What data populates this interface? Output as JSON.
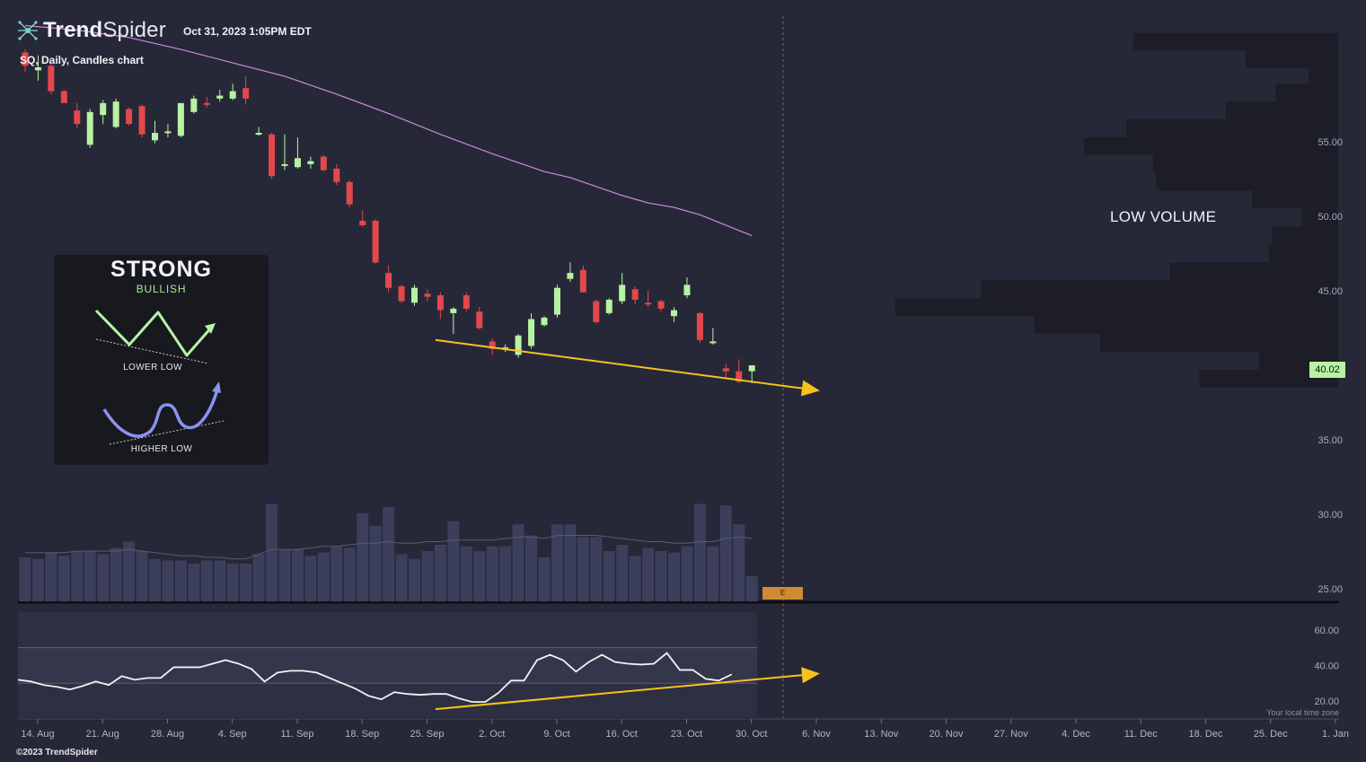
{
  "header": {
    "brand_bold": "Trend",
    "brand_light": "Spider",
    "datetime": "Oct 31, 2023 1:05PM EDT",
    "symbol_line": "SQ, Daily, Candles chart"
  },
  "annotations": {
    "low_volume_label": "LOW VOLUME",
    "last_price_badge": "40.02",
    "earnings_marker": "E"
  },
  "pattern_card": {
    "title": "STRONG",
    "subtitle": "BULLISH",
    "label_top": "LOWER LOW",
    "label_bottom": "HIGHER LOW"
  },
  "footer": {
    "copyright": "©2023 TrendSpider",
    "timezone_note": "Your local time zone"
  },
  "colors": {
    "background": "#262838",
    "bull": "#b7f3a3",
    "bear": "#e3484d",
    "sma": "#c98ed6",
    "volume": "#3c3f5c",
    "profile": "#1c1d26",
    "trendline": "#f7c21b",
    "rsi": "#f2f2f2"
  },
  "chart_data": [
    {
      "type": "candlestick",
      "title": "SQ, Daily, Candles chart",
      "ylim": [
        25,
        62
      ],
      "y_ticks": [
        25,
        30,
        35,
        40,
        45,
        50,
        55
      ],
      "y_tick_labels": [
        "25.00",
        "30.00",
        "35.00",
        "40.00",
        "45.00",
        "50.00",
        "55.00"
      ],
      "x_tick_labels": [
        "14. Aug",
        "21. Aug",
        "28. Aug",
        "4. Sep",
        "11. Sep",
        "18. Sep",
        "25. Sep",
        "2. Oct",
        "9. Oct",
        "16. Oct",
        "23. Oct",
        "30. Oct",
        "6. Nov",
        "13. Nov",
        "20. Nov",
        "27. Nov",
        "4. Dec",
        "11. Dec",
        "18. Dec",
        "25. Dec",
        "1. Jan"
      ],
      "last_price": 40.02,
      "candles": [
        {
          "o": 61.0,
          "h": 61.2,
          "l": 59.7,
          "c": 60.1
        },
        {
          "o": 59.8,
          "h": 60.8,
          "l": 59.1,
          "c": 60.0
        },
        {
          "o": 60.1,
          "h": 60.3,
          "l": 58.2,
          "c": 58.4
        },
        {
          "o": 58.4,
          "h": 58.5,
          "l": 57.6,
          "c": 57.6
        },
        {
          "o": 57.1,
          "h": 57.6,
          "l": 55.9,
          "c": 56.2
        },
        {
          "o": 54.8,
          "h": 57.2,
          "l": 54.6,
          "c": 57.0
        },
        {
          "o": 56.8,
          "h": 57.8,
          "l": 56.2,
          "c": 57.6
        },
        {
          "o": 56.0,
          "h": 57.9,
          "l": 55.9,
          "c": 57.7
        },
        {
          "o": 57.2,
          "h": 57.3,
          "l": 56.1,
          "c": 56.2
        },
        {
          "o": 57.4,
          "h": 57.5,
          "l": 55.3,
          "c": 55.5
        },
        {
          "o": 55.1,
          "h": 56.4,
          "l": 54.9,
          "c": 55.6
        },
        {
          "o": 55.7,
          "h": 56.2,
          "l": 55.3,
          "c": 55.7
        },
        {
          "o": 55.4,
          "h": 57.6,
          "l": 55.3,
          "c": 57.6
        },
        {
          "o": 57.0,
          "h": 58.1,
          "l": 56.9,
          "c": 57.9
        },
        {
          "o": 57.6,
          "h": 58.0,
          "l": 57.3,
          "c": 57.5
        },
        {
          "o": 57.9,
          "h": 58.5,
          "l": 57.7,
          "c": 58.1
        },
        {
          "o": 57.9,
          "h": 58.9,
          "l": 57.8,
          "c": 58.4
        },
        {
          "o": 58.6,
          "h": 59.4,
          "l": 57.5,
          "c": 57.9
        },
        {
          "o": 55.6,
          "h": 56.0,
          "l": 55.4,
          "c": 55.6
        },
        {
          "o": 55.5,
          "h": 55.6,
          "l": 52.5,
          "c": 52.7
        },
        {
          "o": 53.4,
          "h": 55.5,
          "l": 53.1,
          "c": 53.5
        },
        {
          "o": 53.3,
          "h": 55.3,
          "l": 53.2,
          "c": 53.9
        },
        {
          "o": 53.5,
          "h": 54.0,
          "l": 53.2,
          "c": 53.7
        },
        {
          "o": 54.0,
          "h": 54.1,
          "l": 53.0,
          "c": 53.1
        },
        {
          "o": 53.2,
          "h": 53.5,
          "l": 52.1,
          "c": 52.3
        },
        {
          "o": 52.3,
          "h": 52.4,
          "l": 50.6,
          "c": 50.8
        },
        {
          "o": 49.7,
          "h": 50.4,
          "l": 49.3,
          "c": 49.4
        },
        {
          "o": 49.7,
          "h": 49.8,
          "l": 46.8,
          "c": 46.9
        },
        {
          "o": 46.2,
          "h": 46.7,
          "l": 44.9,
          "c": 45.2
        },
        {
          "o": 45.3,
          "h": 45.4,
          "l": 44.2,
          "c": 44.3
        },
        {
          "o": 44.2,
          "h": 45.4,
          "l": 44.0,
          "c": 45.2
        },
        {
          "o": 44.8,
          "h": 45.1,
          "l": 44.3,
          "c": 44.6
        },
        {
          "o": 44.7,
          "h": 44.9,
          "l": 43.1,
          "c": 43.7
        },
        {
          "o": 43.5,
          "h": 43.9,
          "l": 42.1,
          "c": 43.8
        },
        {
          "o": 44.7,
          "h": 44.9,
          "l": 43.6,
          "c": 43.8
        },
        {
          "o": 43.6,
          "h": 43.9,
          "l": 42.4,
          "c": 42.5
        },
        {
          "o": 41.6,
          "h": 41.8,
          "l": 40.7,
          "c": 41.1
        },
        {
          "o": 41.2,
          "h": 41.4,
          "l": 40.9,
          "c": 41.2
        },
        {
          "o": 40.7,
          "h": 42.1,
          "l": 40.5,
          "c": 42.0
        },
        {
          "o": 41.3,
          "h": 43.5,
          "l": 41.1,
          "c": 43.1
        },
        {
          "o": 42.7,
          "h": 43.3,
          "l": 42.6,
          "c": 43.2
        },
        {
          "o": 43.4,
          "h": 45.4,
          "l": 43.2,
          "c": 45.2
        },
        {
          "o": 45.8,
          "h": 46.9,
          "l": 45.6,
          "c": 46.2
        },
        {
          "o": 46.4,
          "h": 46.7,
          "l": 44.9,
          "c": 44.9
        },
        {
          "o": 44.3,
          "h": 44.4,
          "l": 42.8,
          "c": 42.9
        },
        {
          "o": 43.5,
          "h": 44.5,
          "l": 43.4,
          "c": 44.4
        },
        {
          "o": 44.3,
          "h": 46.2,
          "l": 44.1,
          "c": 45.4
        },
        {
          "o": 45.1,
          "h": 45.3,
          "l": 44.1,
          "c": 44.4
        },
        {
          "o": 44.2,
          "h": 45.0,
          "l": 43.9,
          "c": 44.1
        },
        {
          "o": 44.3,
          "h": 44.4,
          "l": 43.6,
          "c": 43.8
        },
        {
          "o": 43.3,
          "h": 43.9,
          "l": 42.9,
          "c": 43.7
        },
        {
          "o": 44.7,
          "h": 45.9,
          "l": 44.5,
          "c": 45.4
        },
        {
          "o": 43.5,
          "h": 43.6,
          "l": 41.5,
          "c": 41.7
        },
        {
          "o": 41.6,
          "h": 42.5,
          "l": 41.4,
          "c": 41.6
        },
        {
          "o": 39.8,
          "h": 40.1,
          "l": 39.2,
          "c": 39.6
        },
        {
          "o": 39.6,
          "h": 40.4,
          "l": 38.8,
          "c": 38.9
        },
        {
          "o": 39.6,
          "h": 40.0,
          "l": 38.8,
          "c": 40.0
        }
      ],
      "sma": {
        "name": "SMA",
        "values": [
          [
            0,
            62.8
          ],
          [
            4,
            62.5
          ],
          [
            8,
            62.0
          ],
          [
            12,
            61.2
          ],
          [
            16,
            60.3
          ],
          [
            20,
            59.4
          ],
          [
            24,
            58.2
          ],
          [
            28,
            56.9
          ],
          [
            32,
            55.5
          ],
          [
            36,
            54.2
          ],
          [
            38,
            53.6
          ],
          [
            40,
            53.0
          ],
          [
            42,
            52.6
          ],
          [
            44,
            52.0
          ],
          [
            46,
            51.4
          ],
          [
            48,
            50.9
          ],
          [
            50,
            50.6
          ],
          [
            52,
            50.1
          ],
          [
            54,
            49.4
          ],
          [
            56,
            48.7
          ]
        ]
      },
      "volume": {
        "values": [
          2.8,
          2.7,
          3.1,
          2.9,
          3.2,
          3.2,
          3.0,
          3.4,
          3.8,
          3.2,
          2.7,
          2.6,
          2.6,
          2.4,
          2.6,
          2.6,
          2.4,
          2.4,
          3.0,
          6.2,
          3.3,
          3.3,
          2.9,
          3.1,
          3.5,
          3.4,
          5.6,
          4.8,
          6.0,
          3.0,
          2.7,
          3.2,
          3.6,
          5.1,
          3.5,
          3.2,
          3.5,
          3.5,
          4.9,
          4.2,
          2.8,
          4.9,
          4.9,
          4.1,
          4.1,
          3.2,
          3.6,
          2.9,
          3.4,
          3.2,
          3.1,
          3.5,
          6.2,
          3.5,
          6.1,
          4.9,
          1.6
        ],
        "avg": [
          3.1,
          3.1,
          3.1,
          3.1,
          3.2,
          3.2,
          3.2,
          3.2,
          3.3,
          3.2,
          3.1,
          3.0,
          2.9,
          2.9,
          2.8,
          2.8,
          2.7,
          2.7,
          3.0,
          3.3,
          3.3,
          3.3,
          3.4,
          3.5,
          3.5,
          3.6,
          3.7,
          3.7,
          3.8,
          3.7,
          3.7,
          3.8,
          3.8,
          3.9,
          3.9,
          3.9,
          3.9,
          4.0,
          4.1,
          4.1,
          4.0,
          4.2,
          4.2,
          4.2,
          4.2,
          4.1,
          4.0,
          3.9,
          3.8,
          3.8,
          3.7,
          3.7,
          3.8,
          3.8,
          4.0,
          4.1,
          4.0
        ]
      },
      "volume_profile": [
        {
          "price": 61.7,
          "len": 0.62
        },
        {
          "price": 60.5,
          "len": 0.28
        },
        {
          "price": 59.3,
          "len": 0.09
        },
        {
          "price": 58.3,
          "len": 0.19
        },
        {
          "price": 57.1,
          "len": 0.34
        },
        {
          "price": 55.9,
          "len": 0.64
        },
        {
          "price": 54.7,
          "len": 0.77
        },
        {
          "price": 53.5,
          "len": 0.56
        },
        {
          "price": 52.3,
          "len": 0.55
        },
        {
          "price": 51.1,
          "len": 0.26
        },
        {
          "price": 49.9,
          "len": 0.11
        },
        {
          "price": 48.7,
          "len": 0.2
        },
        {
          "price": 47.5,
          "len": 0.21
        },
        {
          "price": 46.3,
          "len": 0.51
        },
        {
          "price": 45.1,
          "len": 1.08
        },
        {
          "price": 43.9,
          "len": 1.34
        },
        {
          "price": 42.7,
          "len": 0.92
        },
        {
          "price": 41.5,
          "len": 0.72
        },
        {
          "price": 40.3,
          "len": 0.24
        },
        {
          "price": 39.1,
          "len": 0.42
        }
      ],
      "support_trendline": {
        "from": [
          33,
          41.7
        ],
        "to": [
          62,
          38.3
        ],
        "arrow": true
      }
    },
    {
      "type": "line",
      "title": "RSI",
      "ylim": [
        10,
        70
      ],
      "y_ticks": [
        20,
        40,
        60
      ],
      "y_tick_labels": [
        "20.00",
        "40.00",
        "60.00"
      ],
      "band": [
        30,
        50
      ],
      "values": [
        32,
        31,
        29,
        28,
        26.5,
        28.5,
        31,
        29,
        34,
        32,
        33,
        33,
        39,
        39,
        39,
        41,
        43,
        41,
        38,
        31,
        36,
        37,
        37,
        36,
        33,
        30,
        27,
        23,
        21,
        25,
        24,
        23.5,
        24,
        24,
        21.5,
        19.5,
        19.5,
        24.5,
        31.5,
        31.5,
        43,
        46,
        43,
        36.5,
        42,
        46,
        42,
        41,
        40.5,
        41,
        47,
        37.5,
        37.5,
        32.5,
        31.5,
        35
      ],
      "support_trendline": {
        "from": [
          33,
          15.5
        ],
        "to": [
          62,
          35.5
        ],
        "arrow": true
      }
    }
  ]
}
